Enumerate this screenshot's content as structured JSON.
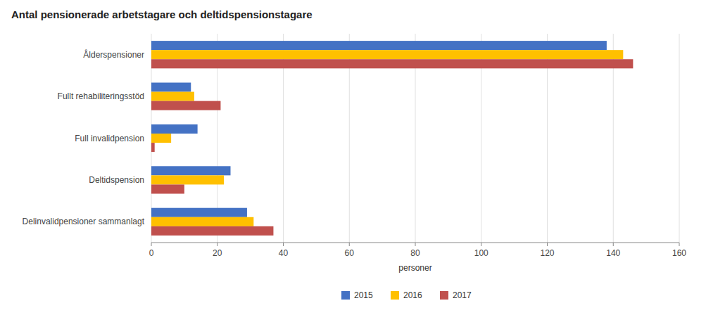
{
  "chart_data": {
    "type": "bar",
    "orientation": "horizontal",
    "title": "Antal pensionerade arbetstagare och deltidspensionstagare",
    "categories": [
      "Delinvalidpensioner sammanlagt",
      "Deltidspension",
      "Full invalidpension",
      "Fullt rehabiliteringsstöd",
      "Ålderspensioner"
    ],
    "series": [
      {
        "name": "2015",
        "color": "#4472C4",
        "values": [
          29,
          24,
          14,
          12,
          138
        ]
      },
      {
        "name": "2016",
        "color": "#FFC000",
        "values": [
          31,
          22,
          6,
          13,
          143
        ]
      },
      {
        "name": "2017",
        "color": "#C0504D",
        "values": [
          37,
          10,
          1,
          21,
          146
        ]
      }
    ],
    "xlabel": "personer",
    "xlim": [
      0,
      160
    ],
    "xticks": [
      0,
      20,
      40,
      60,
      80,
      100,
      120,
      140,
      160
    ],
    "grid": true,
    "legend": "bottom"
  }
}
